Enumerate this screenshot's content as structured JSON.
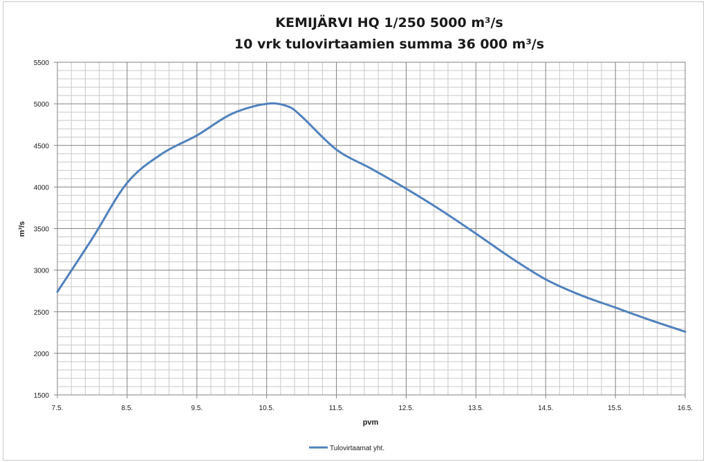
{
  "chart_data": {
    "type": "line",
    "title_line1": "KEMIJÄRVI HQ 1/250    5000 m³/s",
    "title_line2": "10 vrk tulovirtaamien summa  36 000 m³/s",
    "xlabel": "pvm",
    "ylabel": "m³/s",
    "x_ticks": [
      "7.5.",
      "8.5.",
      "9.5.",
      "10.5.",
      "11.5.",
      "12.5.",
      "13.5.",
      "14.5.",
      "15.5.",
      "16.5."
    ],
    "y_ticks": [
      1500,
      2000,
      2500,
      3000,
      3500,
      4000,
      4500,
      5000,
      5500
    ],
    "xlim": [
      0,
      9
    ],
    "ylim": [
      1500,
      5500
    ],
    "grid": true,
    "legend_position": "bottom",
    "series": [
      {
        "name": "Tulovirtaamat yht.",
        "color": "#4f81bd",
        "x": [
          0,
          0.5,
          1,
          1.5,
          2,
          2.5,
          3,
          3.3,
          3.5,
          4,
          4.5,
          5,
          5.5,
          6,
          6.5,
          7,
          7.5,
          8,
          8.5,
          9
        ],
        "y": [
          2740,
          3380,
          4050,
          4400,
          4620,
          4880,
          5000,
          4970,
          4850,
          4450,
          4220,
          3980,
          3720,
          3440,
          3150,
          2890,
          2700,
          2550,
          2400,
          2260
        ]
      }
    ]
  }
}
